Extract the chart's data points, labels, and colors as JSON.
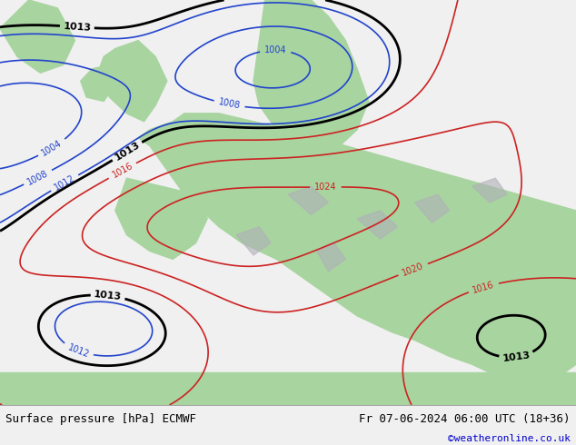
{
  "title_left": "Surface pressure [hPa] ECMWF",
  "title_right": "Fr 07-06-2024 06:00 UTC (18+36)",
  "credit": "©weatheronline.co.uk",
  "sea_color": "#b8dff0",
  "land_color": "#a8d4a0",
  "mountain_color": "#b0b0b8",
  "text_color_black": "#000000",
  "text_color_blue": "#0000cc",
  "text_color_red": "#cc0000",
  "footer_bg": "#f0f0f0",
  "font_size_footer": 9,
  "font_size_credit": 8,
  "isobar_blue_color": "#2244cc",
  "isobar_red_color": "#cc2222",
  "isobar_black_color": "#000000"
}
